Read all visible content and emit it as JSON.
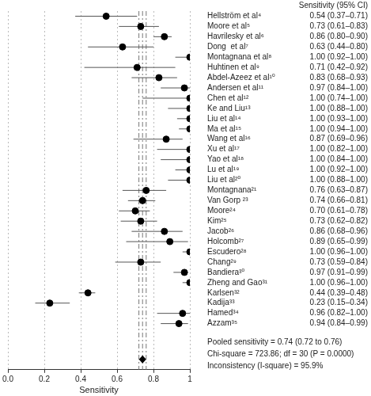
{
  "chart_data": {
    "type": "forest",
    "x_label": "Sensitivity",
    "column_header": "Sensitivity (95% CI)",
    "categories": [
      "Hellström et al⁴",
      "Moore et al⁵",
      "Havrilesky et al⁶",
      "Dong  et al⁷",
      "Montagnana et al⁸",
      "Huhtinen et al⁹",
      "Abdel-Azeez et al¹⁰",
      "Andersen et al¹¹",
      "Chen et al¹²",
      "Ke and Liu¹³",
      "Liu et al¹⁴",
      "Ma et al¹⁵",
      "Wang et al¹⁶",
      "Xu et al¹⁷",
      "Yao et al¹⁸",
      "Lu et al¹⁹",
      "Liu et al²⁰",
      "Montagnana²¹",
      "Van Gorp ²³",
      "Moore²⁴",
      "Kim²⁵",
      "Jacob²⁶",
      "Holcomb²⁷",
      "Escudero²⁸",
      "Chang²⁹",
      "Bandiera³⁰",
      "Zheng and Gao³¹",
      "Karlsen³²",
      "Kadija³³",
      "Hamed³⁴",
      "Azzam³⁵"
    ],
    "values": [
      0.54,
      0.73,
      0.86,
      0.63,
      1.0,
      0.71,
      0.83,
      0.97,
      1.0,
      1.0,
      1.0,
      1.0,
      0.87,
      1.0,
      1.0,
      1.0,
      1.0,
      0.76,
      0.74,
      0.7,
      0.73,
      0.86,
      0.89,
      1.0,
      0.73,
      0.97,
      1.0,
      0.44,
      0.23,
      0.96,
      0.94
    ],
    "ci_lower": [
      0.37,
      0.61,
      0.8,
      0.44,
      0.92,
      0.42,
      0.68,
      0.84,
      0.74,
      0.88,
      0.93,
      0.94,
      0.69,
      0.82,
      0.84,
      0.92,
      0.88,
      0.63,
      0.66,
      0.61,
      0.62,
      0.68,
      0.65,
      0.96,
      0.59,
      0.91,
      0.96,
      0.39,
      0.15,
      0.82,
      0.84
    ],
    "ci_upper": [
      0.71,
      0.83,
      0.9,
      0.8,
      1.0,
      0.92,
      0.93,
      1.0,
      1.0,
      1.0,
      1.0,
      1.0,
      0.96,
      1.0,
      1.0,
      1.0,
      1.0,
      0.87,
      0.81,
      0.78,
      0.82,
      0.96,
      0.99,
      1.0,
      0.84,
      0.99,
      1.0,
      0.48,
      0.34,
      1.0,
      0.99
    ],
    "value_labels": [
      "0.54 (0.37–0.71)",
      "0.73 (0.61–0.83)",
      "0.86 (0.80–0.90)",
      "0.63 (0.44–0.80)",
      "1.00 (0.92–1.00)",
      "0.71 (0.42–0.92)",
      "0.83 (0.68–0.93)",
      "0.97 (0.84–1.00)",
      "1.00 (0.74–1.00)",
      "1.00 (0.88–1.00)",
      "1.00 (0.93–1.00)",
      "1.00 (0.94–1.00)",
      "0.87 (0.69–0.96)",
      "1.00 (0.82–1.00)",
      "1.00 (0.84–1.00)",
      "1.00 (0.92–1.00)",
      "1.00 (0.88–1.00)",
      "0.76 (0.63–0.87)",
      "0.74 (0.66–0.81)",
      "0.70 (0.61–0.78)",
      "0.73 (0.62–0.82)",
      "0.86 (0.68–0.96)",
      "0.89 (0.65–0.99)",
      "1.00 (0.96–1.00)",
      "0.73 (0.59–0.84)",
      "0.97 (0.91–0.99)",
      "1.00 (0.96–1.00)",
      "0.44 (0.39–0.48)",
      "0.23 (0.15–0.34)",
      "0.96 (0.82–1.00)",
      "0.94 (0.84–0.99)"
    ],
    "pooled": {
      "value": 0.74,
      "ci_lower": 0.72,
      "ci_upper": 0.76
    },
    "annotations": [
      "Pooled sensitivity = 0.74 (0.72 to 0.76)",
      "Chi-square = 723.86; df = 30 (P = 0.0000)",
      "Inconsistency (I-square) = 95.9%"
    ],
    "xlim": [
      0,
      1
    ],
    "xticks": [
      {
        "value": 0,
        "label": "0.0"
      },
      {
        "value": 0.2,
        "label": "0.2"
      },
      {
        "value": 0.4,
        "label": "0.4"
      },
      {
        "value": 0.6,
        "label": "0.6"
      },
      {
        "value": 0.8,
        "label": "0.8"
      },
      1
    ],
    "grid": true,
    "color": "#000000",
    "marker": "circle"
  }
}
